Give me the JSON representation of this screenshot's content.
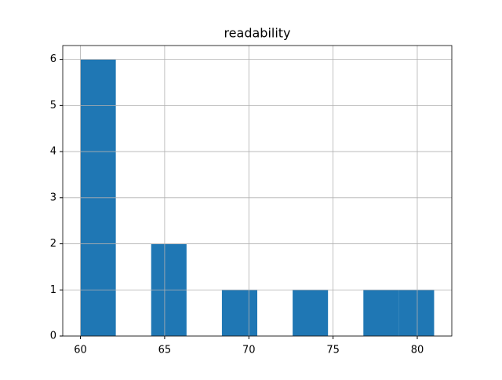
{
  "chart_data": {
    "type": "histogram",
    "title": "readability",
    "bins": [
      60,
      62.1,
      64.2,
      66.3,
      68.4,
      70.5,
      72.6,
      74.7,
      76.8,
      78.9,
      81
    ],
    "values": [
      6,
      0,
      2,
      0,
      1,
      0,
      1,
      0,
      1,
      1
    ],
    "color": "#1f77b4",
    "xlim": [
      58.95,
      82.05
    ],
    "xticks": [
      60,
      65,
      70,
      75,
      80
    ],
    "ylim": [
      0,
      6.3
    ],
    "yticks": [
      0,
      1,
      2,
      3,
      4,
      5,
      6
    ],
    "grid": true
  }
}
